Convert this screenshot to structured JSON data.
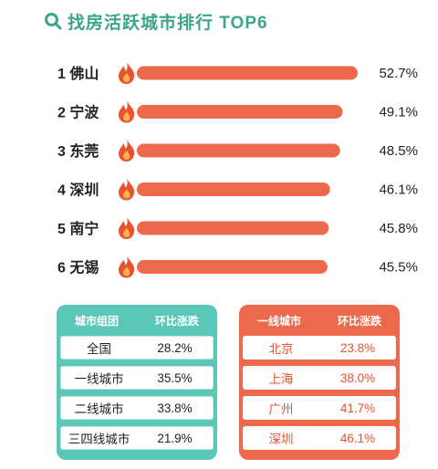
{
  "title": "找房活跃城市排行 TOP6",
  "colors": {
    "brand": "#3aa58c",
    "bar": "#ec6a4b",
    "flame": "#e8532f",
    "flame_inner": "#f9b54a",
    "green_panel": "#5bc7b8",
    "red_panel": "#ec6a4b"
  },
  "icons": {
    "title_icon": "search-magnifier-icon",
    "rank_icon": "flame-icon"
  },
  "chart_data": {
    "type": "bar",
    "orientation": "horizontal",
    "categories": [
      "1 佛山",
      "2 宁波",
      "3 东莞",
      "4 深圳",
      "5 南宁",
      "6 无锡"
    ],
    "values": [
      52.7,
      49.1,
      48.5,
      46.1,
      45.8,
      45.5
    ],
    "value_labels": [
      "52.7%",
      "49.1%",
      "48.5%",
      "46.1%",
      "45.8%",
      "45.5%"
    ],
    "grid": false
  },
  "tables": {
    "left": {
      "headers": [
        "城市组团",
        "环比涨跌"
      ],
      "rows": [
        [
          "全国",
          "28.2%"
        ],
        [
          "一线城市",
          "35.5%"
        ],
        [
          "二线城市",
          "33.8%"
        ],
        [
          "三四线城市",
          "21.9%"
        ]
      ]
    },
    "right": {
      "headers": [
        "一线城市",
        "环比涨跌"
      ],
      "rows": [
        [
          "北京",
          "23.8%"
        ],
        [
          "上海",
          "38.0%"
        ],
        [
          "广州",
          "41.7%"
        ],
        [
          "深圳",
          "46.1%"
        ]
      ]
    }
  }
}
